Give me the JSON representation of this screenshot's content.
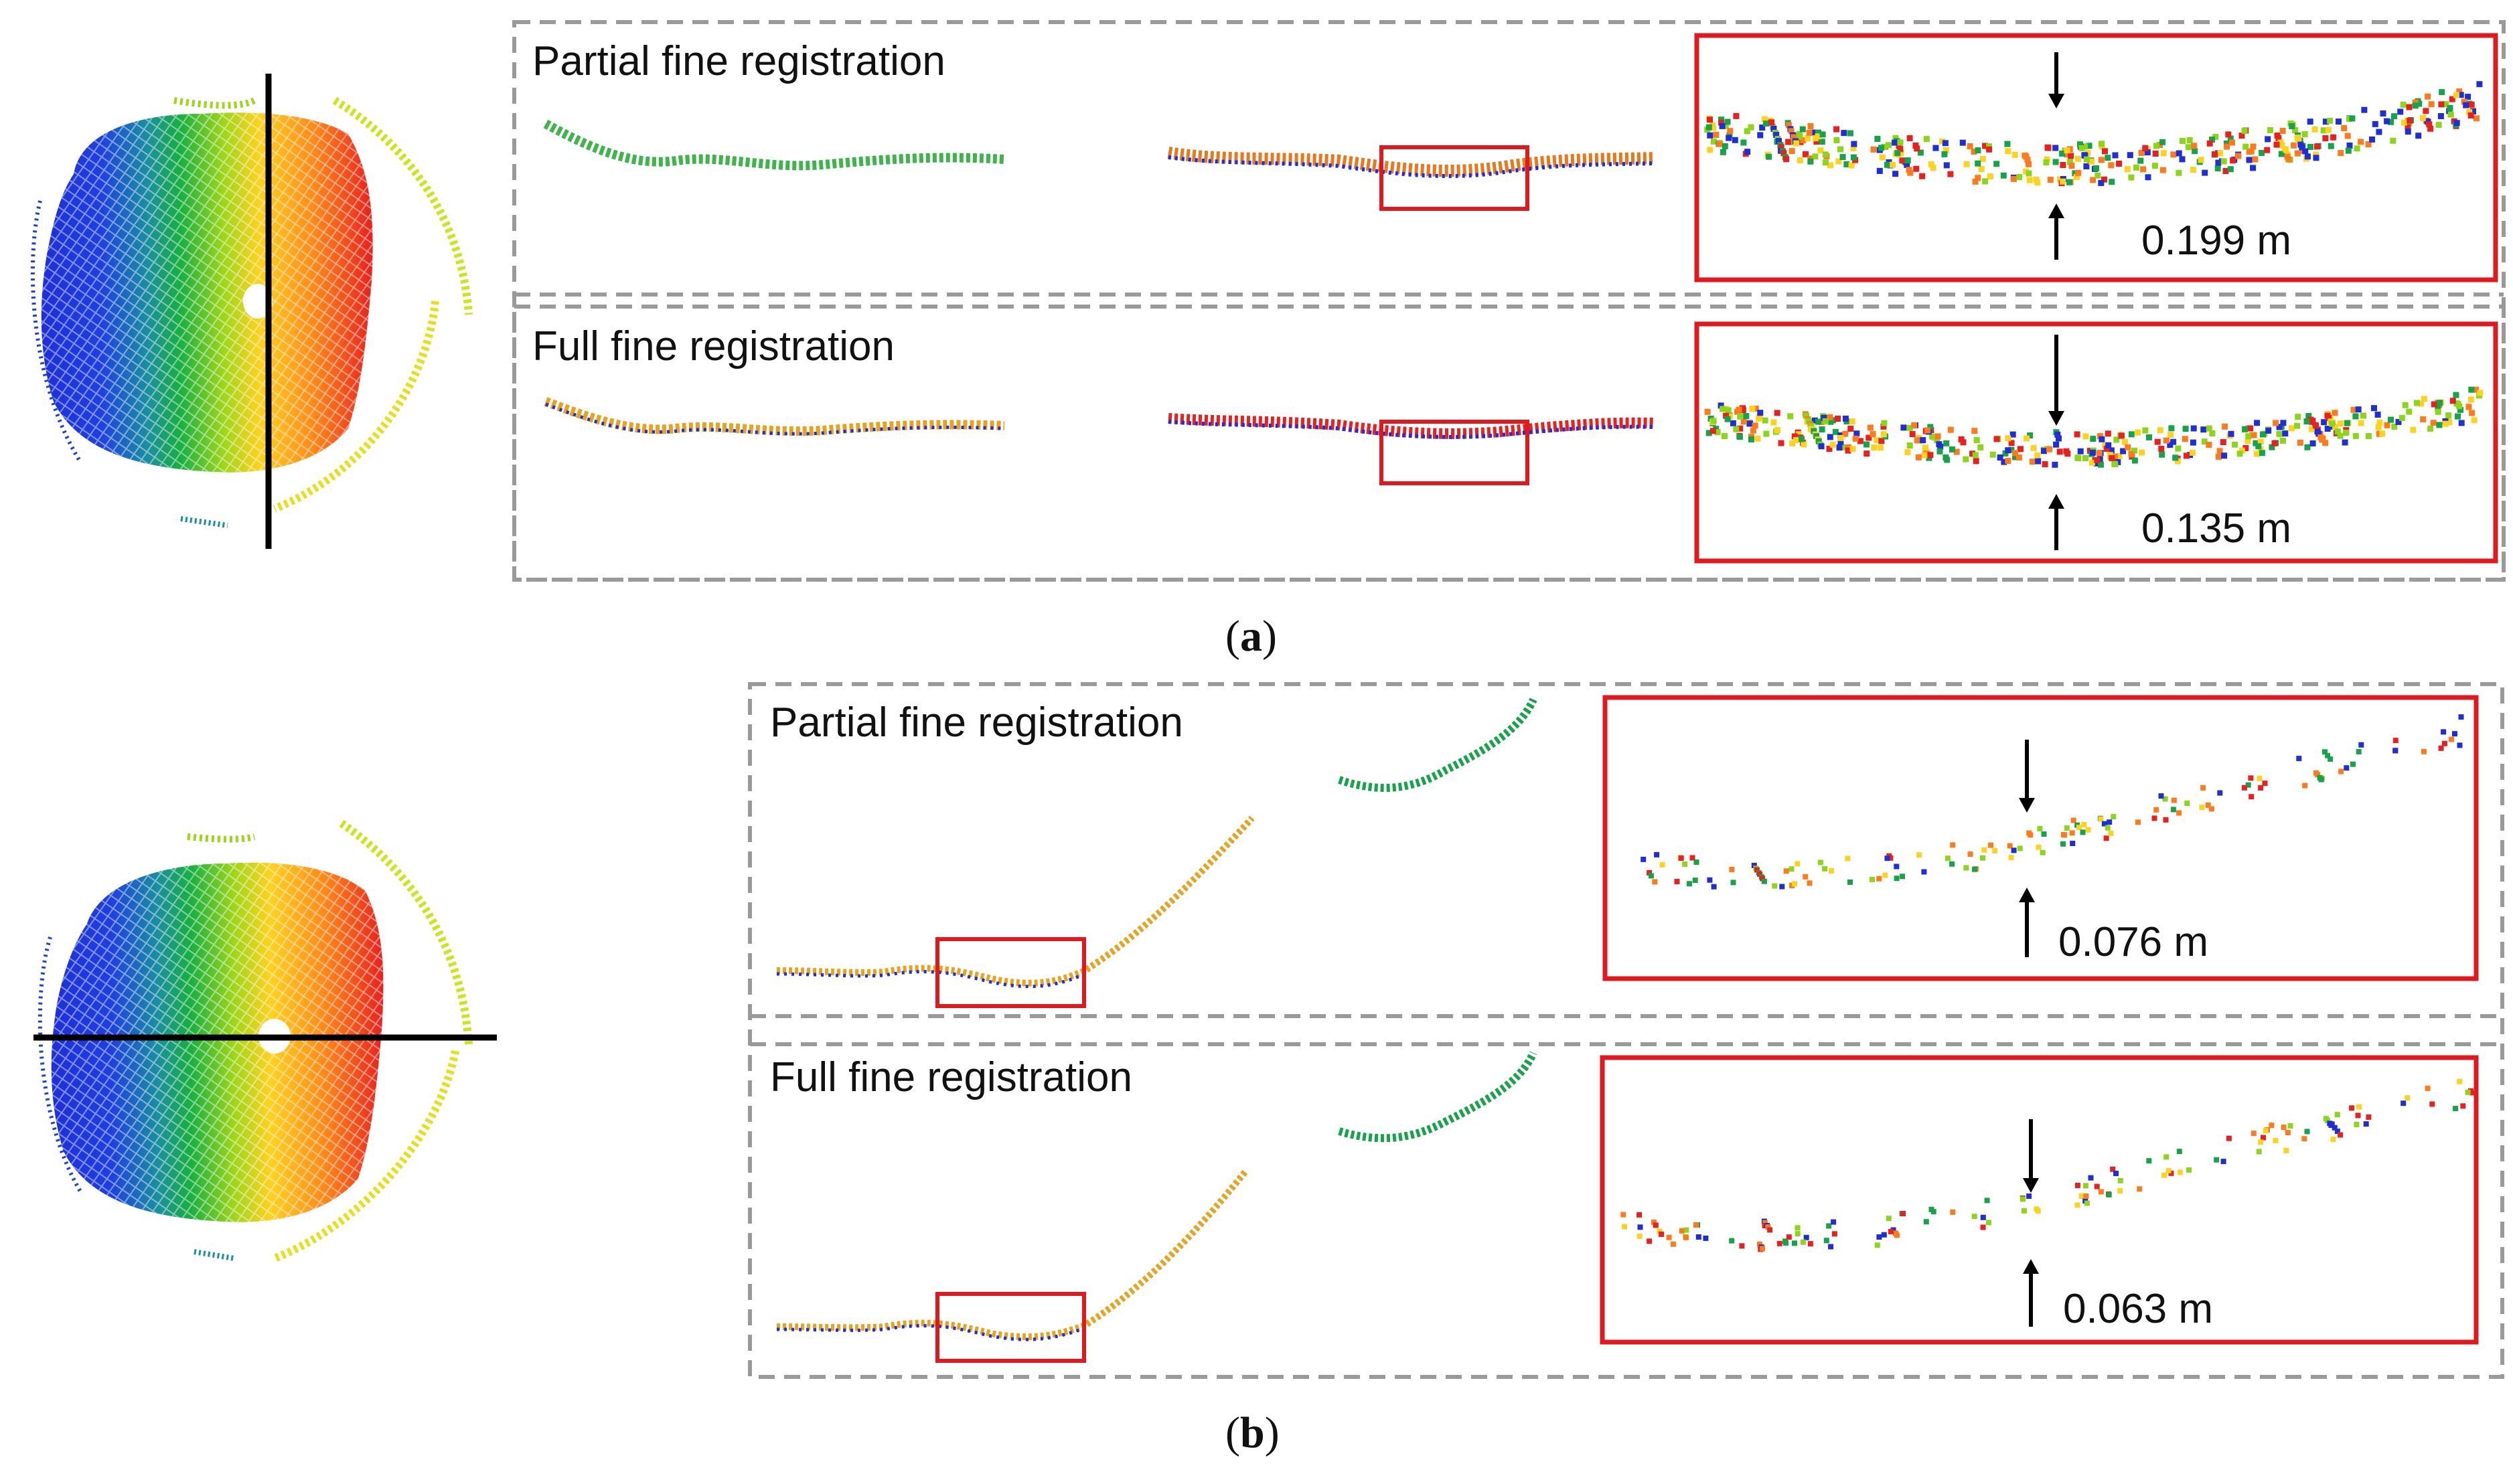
{
  "panel_a": {
    "caption_open": "(",
    "caption_letter": "a",
    "caption_close": ")",
    "rows": [
      {
        "title": "Partial fine registration",
        "measure": "0.199 m"
      },
      {
        "title": "Full fine registration",
        "measure": "0.135 m"
      }
    ]
  },
  "panel_b": {
    "caption_open": "(",
    "caption_letter": "b",
    "caption_close": ")",
    "rows": [
      {
        "title": "Partial fine registration",
        "measure": "0.076 m"
      },
      {
        "title": "Full fine registration",
        "measure": "0.063 m"
      }
    ]
  },
  "colors": {
    "highlight_box": "#e0191e",
    "dashed_border": "#9a9a9a",
    "section_line": "#000000",
    "point_palette": [
      "#1e2fd8",
      "#16a34a",
      "#8bd61a",
      "#ffd21f",
      "#ff7a1a",
      "#e8211e"
    ]
  }
}
